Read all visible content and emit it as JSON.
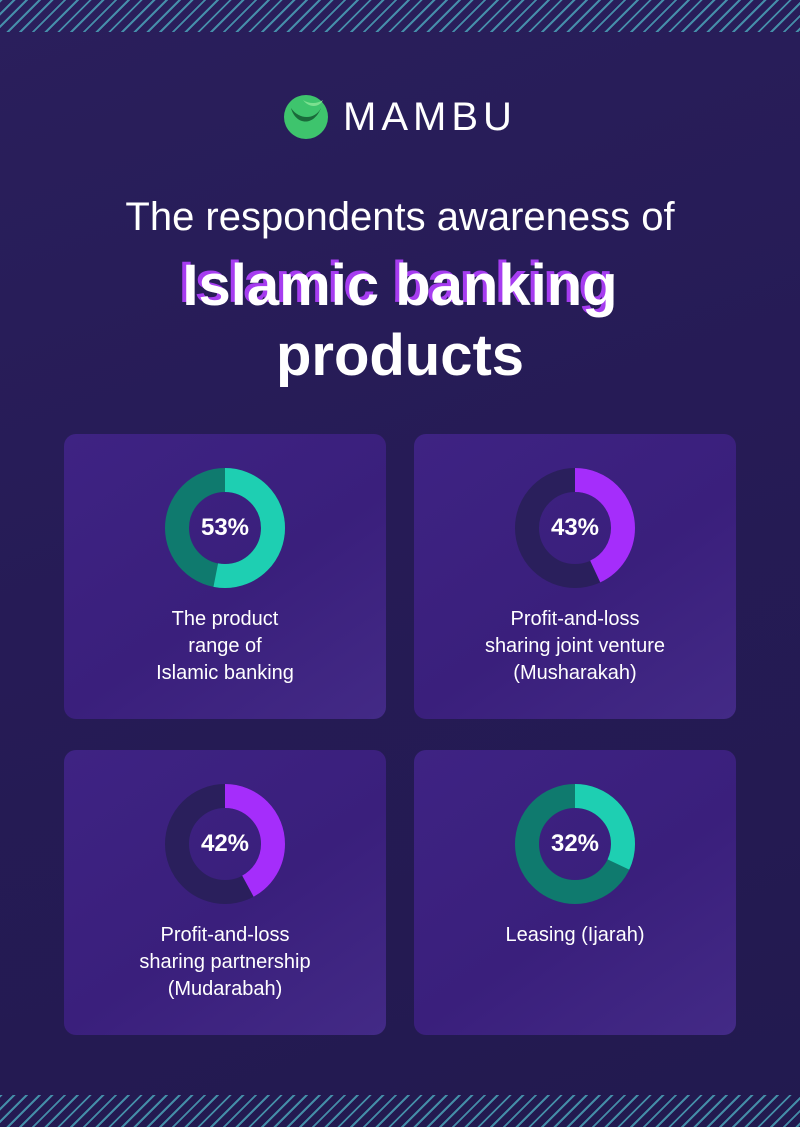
{
  "brand": {
    "name": "MAMBU",
    "logo_icon": "mambu-logo-icon"
  },
  "title": {
    "line1": "The respondents awareness of",
    "line2": "Islamic banking",
    "line3": "products"
  },
  "colors": {
    "teal_fill": "#1ecfb2",
    "teal_track": "#0f7a6e",
    "purple_fill": "#a52dfb",
    "purple_track": "#2a1f5c",
    "highlight_shadow": "#a63cf0"
  },
  "chart_data": [
    {
      "type": "pie",
      "value": 53,
      "value_label": "53%",
      "label_lines": [
        "The product",
        "range of",
        "Islamic banking"
      ],
      "color": "#1ecfb2",
      "track_color": "#0f7a6e"
    },
    {
      "type": "pie",
      "value": 43,
      "value_label": "43%",
      "label_lines": [
        "Profit-and-loss",
        "sharing joint venture",
        "(Musharakah)"
      ],
      "color": "#a52dfb",
      "track_color": "#2a1f5c"
    },
    {
      "type": "pie",
      "value": 42,
      "value_label": "42%",
      "label_lines": [
        "Profit-and-loss",
        "sharing partnership",
        "(Mudarabah)"
      ],
      "color": "#a52dfb",
      "track_color": "#2a1f5c"
    },
    {
      "type": "pie",
      "value": 32,
      "value_label": "32%",
      "label_lines": [
        "Leasing (Ijarah)"
      ],
      "color": "#1ecfb2",
      "track_color": "#0f7a6e"
    }
  ]
}
